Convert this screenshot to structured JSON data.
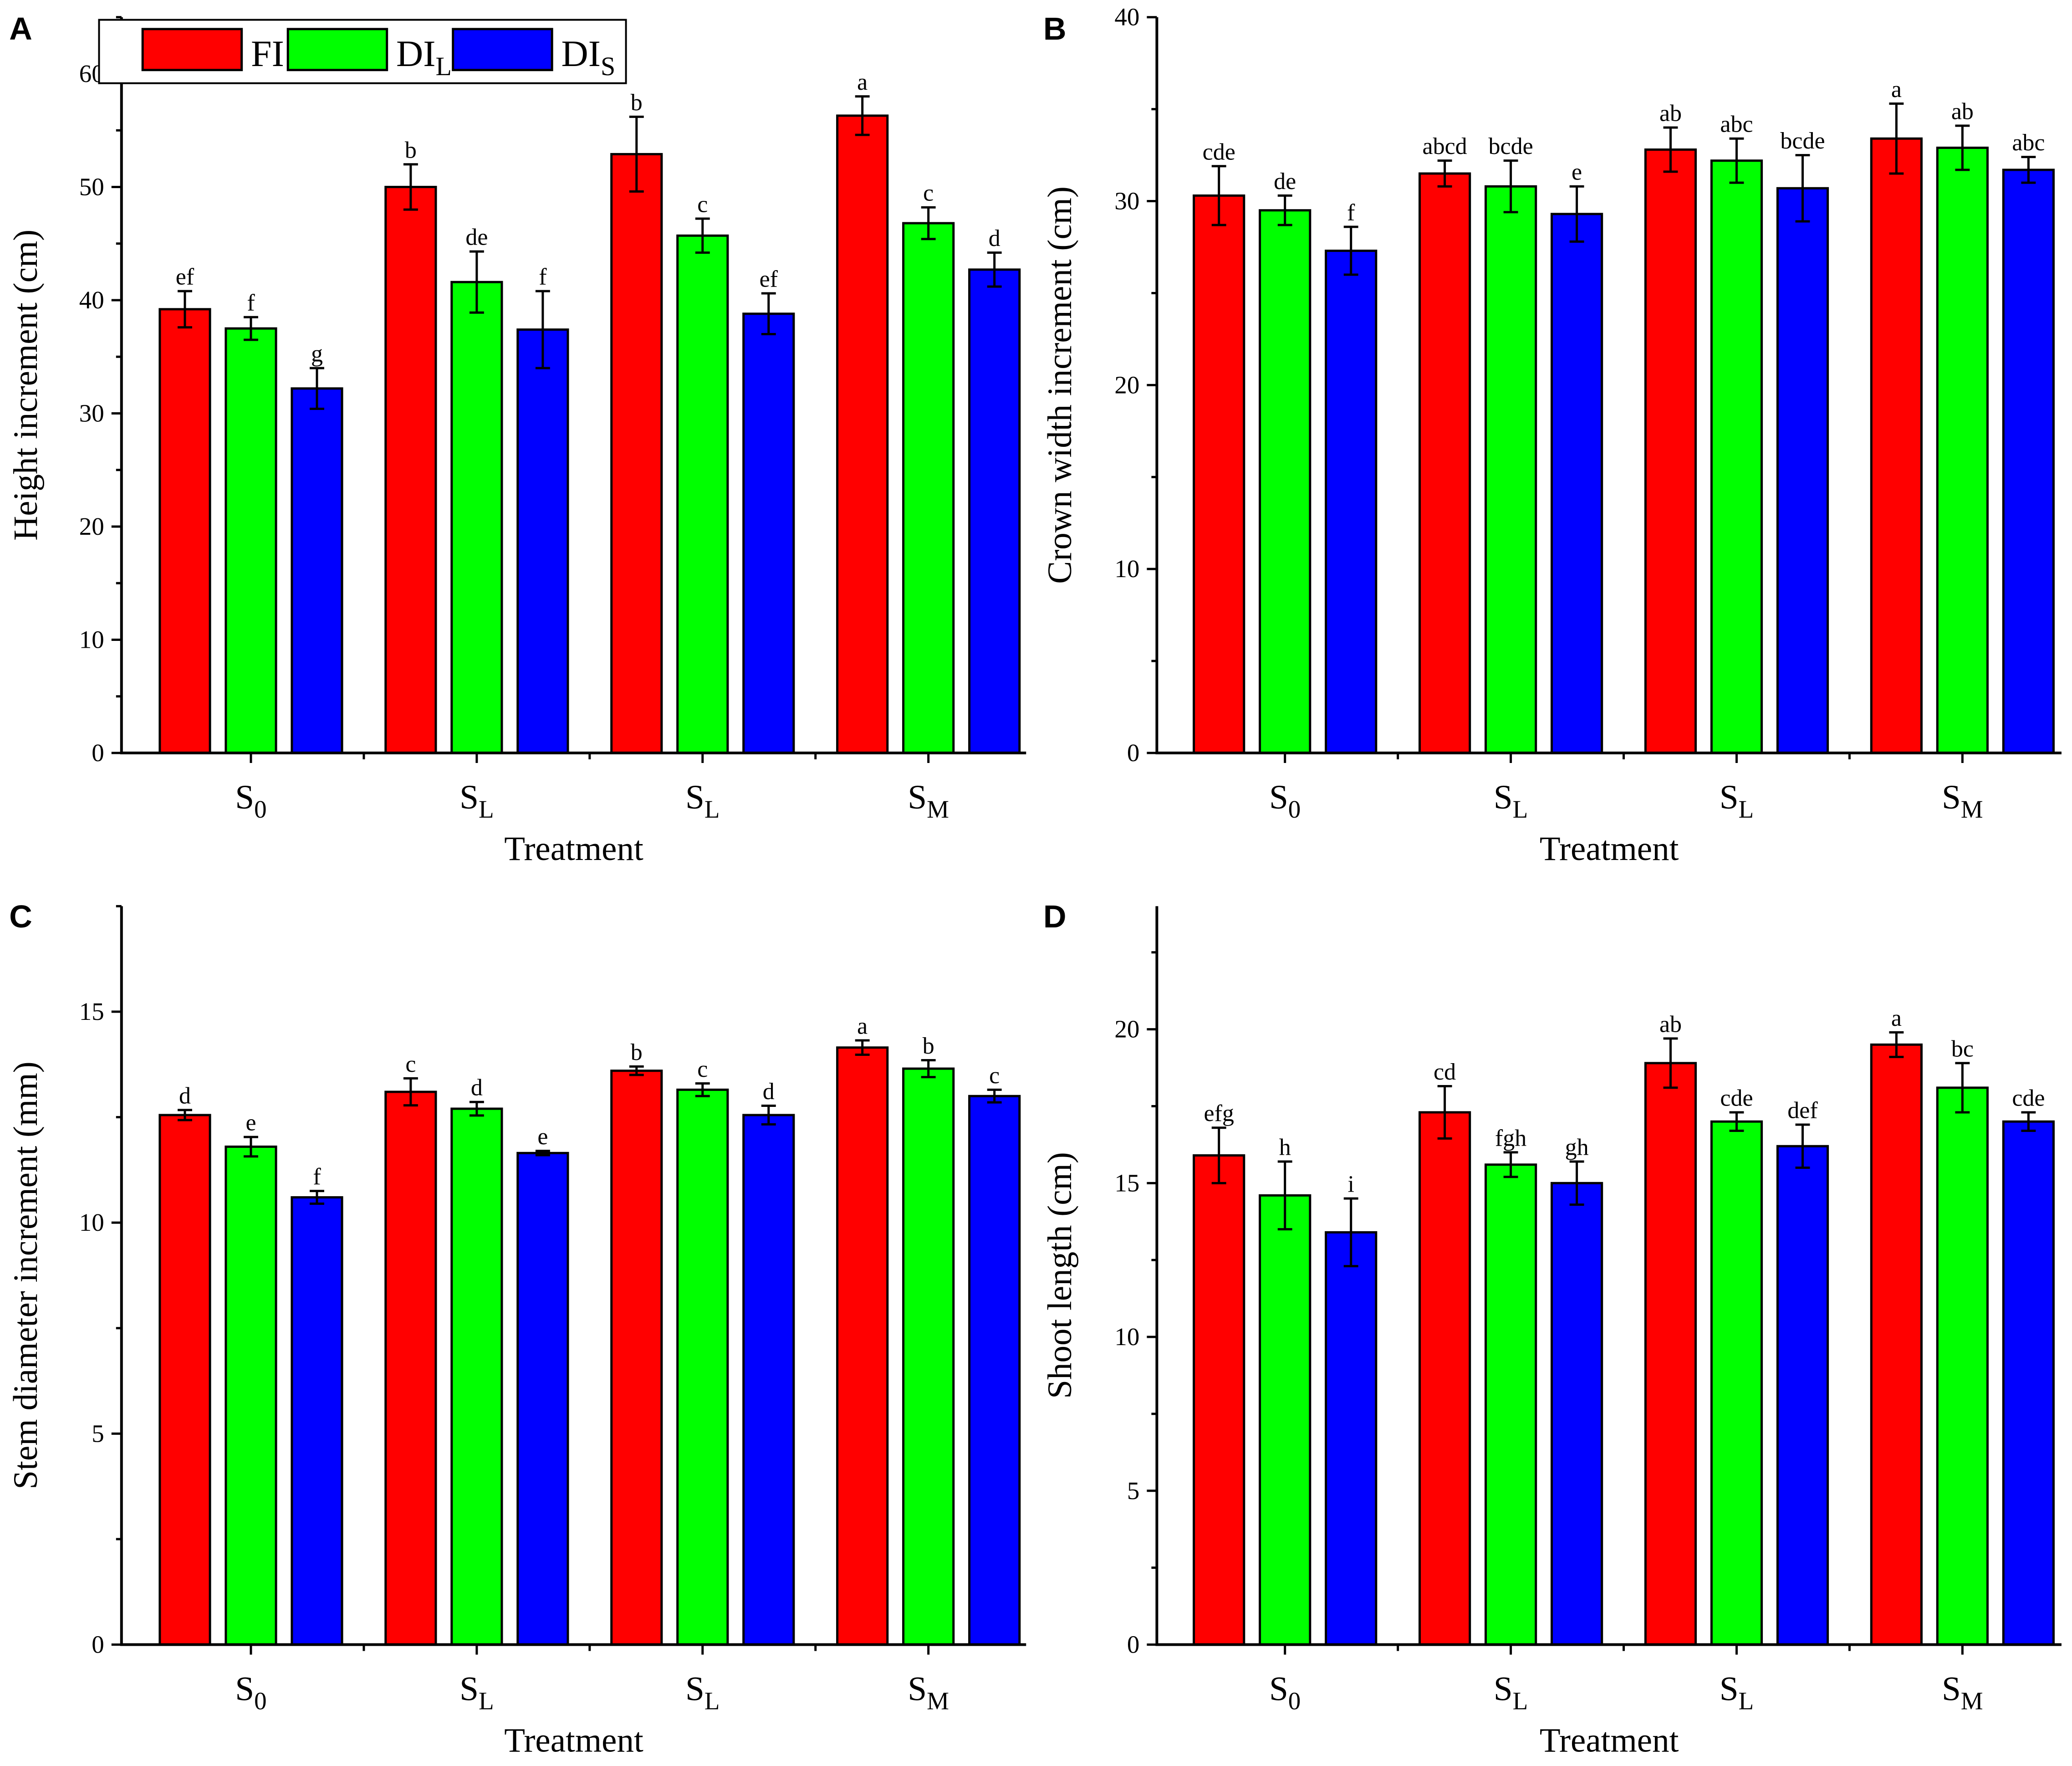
{
  "legend": {
    "entries": [
      {
        "name": "FI",
        "sub": "",
        "color": "#ff0000"
      },
      {
        "name": "DI",
        "sub": "L",
        "color": "#00ff00"
      },
      {
        "name": "DI",
        "sub": "S",
        "color": "#0000ff"
      }
    ]
  },
  "chart_data": [
    {
      "type": "bar",
      "panel": "A",
      "title": "",
      "xlabel": "Treatment",
      "ylabel": "Height increment (cm)",
      "ylim": [
        0,
        65
      ],
      "yticks": [
        0,
        10,
        20,
        30,
        40,
        50,
        60
      ],
      "categories": [
        {
          "base": "S",
          "sub": "0"
        },
        {
          "base": "S",
          "sub": "L"
        },
        {
          "base": "S",
          "sub": "L"
        },
        {
          "base": "S",
          "sub": "M"
        }
      ],
      "series": [
        {
          "name": "FI",
          "values": [
            39.2,
            50.0,
            52.9,
            56.3
          ],
          "errors": [
            1.6,
            2.0,
            3.3,
            1.7
          ],
          "letters": [
            "ef",
            "b",
            "b",
            "a"
          ]
        },
        {
          "name": "DIL",
          "values": [
            37.5,
            41.6,
            45.7,
            46.8
          ],
          "errors": [
            1.0,
            2.7,
            1.5,
            1.4
          ],
          "letters": [
            "f",
            "de",
            "c",
            "c"
          ]
        },
        {
          "name": "DIS",
          "values": [
            32.2,
            37.4,
            38.8,
            42.7
          ],
          "errors": [
            1.8,
            3.4,
            1.8,
            1.5
          ],
          "letters": [
            "g",
            "f",
            "ef",
            "d"
          ]
        }
      ]
    },
    {
      "type": "bar",
      "panel": "B",
      "title": "",
      "xlabel": "Treatment",
      "ylabel": "Crown width increment (cm)",
      "ylim": [
        0,
        40
      ],
      "yticks": [
        0,
        10,
        20,
        30,
        40
      ],
      "categories": [
        {
          "base": "S",
          "sub": "0"
        },
        {
          "base": "S",
          "sub": "L"
        },
        {
          "base": "S",
          "sub": "L"
        },
        {
          "base": "S",
          "sub": "M"
        }
      ],
      "series": [
        {
          "name": "FI",
          "values": [
            30.3,
            31.5,
            32.8,
            33.4
          ],
          "errors": [
            1.6,
            0.7,
            1.2,
            1.9
          ],
          "letters": [
            "cde",
            "abcd",
            "ab",
            "a"
          ]
        },
        {
          "name": "DIL",
          "values": [
            29.5,
            30.8,
            32.2,
            32.9
          ],
          "errors": [
            0.8,
            1.4,
            1.2,
            1.2
          ],
          "letters": [
            "de",
            "bcde",
            "abc",
            "ab"
          ]
        },
        {
          "name": "DIS",
          "values": [
            27.3,
            29.3,
            30.7,
            31.7
          ],
          "errors": [
            1.3,
            1.5,
            1.8,
            0.7
          ],
          "letters": [
            "f",
            "e",
            "bcde",
            "abc"
          ]
        }
      ]
    },
    {
      "type": "bar",
      "panel": "C",
      "title": "",
      "xlabel": "Treatment",
      "ylabel": "Stem diameter increment (mm)",
      "ylim": [
        0,
        17.5
      ],
      "yticks": [
        0,
        5,
        10,
        15
      ],
      "categories": [
        {
          "base": "S",
          "sub": "0"
        },
        {
          "base": "S",
          "sub": "L"
        },
        {
          "base": "S",
          "sub": "L"
        },
        {
          "base": "S",
          "sub": "M"
        }
      ],
      "series": [
        {
          "name": "FI",
          "values": [
            12.55,
            13.1,
            13.6,
            14.15
          ],
          "errors": [
            0.12,
            0.32,
            0.1,
            0.17
          ],
          "letters": [
            "d",
            "c",
            "b",
            "a"
          ]
        },
        {
          "name": "DIL",
          "values": [
            11.8,
            12.7,
            13.15,
            13.65
          ],
          "errors": [
            0.23,
            0.16,
            0.15,
            0.2
          ],
          "letters": [
            "e",
            "d",
            "c",
            "b"
          ]
        },
        {
          "name": "DIS",
          "values": [
            10.6,
            11.65,
            12.55,
            13.0
          ],
          "errors": [
            0.15,
            0.05,
            0.22,
            0.15
          ],
          "letters": [
            "f",
            "e",
            "d",
            "c"
          ]
        }
      ]
    },
    {
      "type": "bar",
      "panel": "D",
      "title": "",
      "xlabel": "Treatment",
      "ylabel": "Shoot length (cm)",
      "ylim": [
        0,
        24
      ],
      "yticks": [
        0,
        5,
        10,
        15,
        20
      ],
      "categories": [
        {
          "base": "S",
          "sub": "0"
        },
        {
          "base": "S",
          "sub": "L"
        },
        {
          "base": "S",
          "sub": "L"
        },
        {
          "base": "S",
          "sub": "M"
        }
      ],
      "series": [
        {
          "name": "FI",
          "values": [
            15.9,
            17.3,
            18.9,
            19.5
          ],
          "errors": [
            0.9,
            0.85,
            0.8,
            0.4
          ],
          "letters": [
            "efg",
            "cd",
            "ab",
            "a"
          ]
        },
        {
          "name": "DIL",
          "values": [
            14.6,
            15.6,
            17.0,
            18.1
          ],
          "errors": [
            1.1,
            0.4,
            0.3,
            0.8
          ],
          "letters": [
            "h",
            "fgh",
            "cde",
            "bc"
          ]
        },
        {
          "name": "DIS",
          "values": [
            13.4,
            15.0,
            16.2,
            17.0
          ],
          "errors": [
            1.1,
            0.7,
            0.7,
            0.3
          ],
          "letters": [
            "i",
            "gh",
            "def",
            "cde"
          ]
        }
      ]
    }
  ]
}
